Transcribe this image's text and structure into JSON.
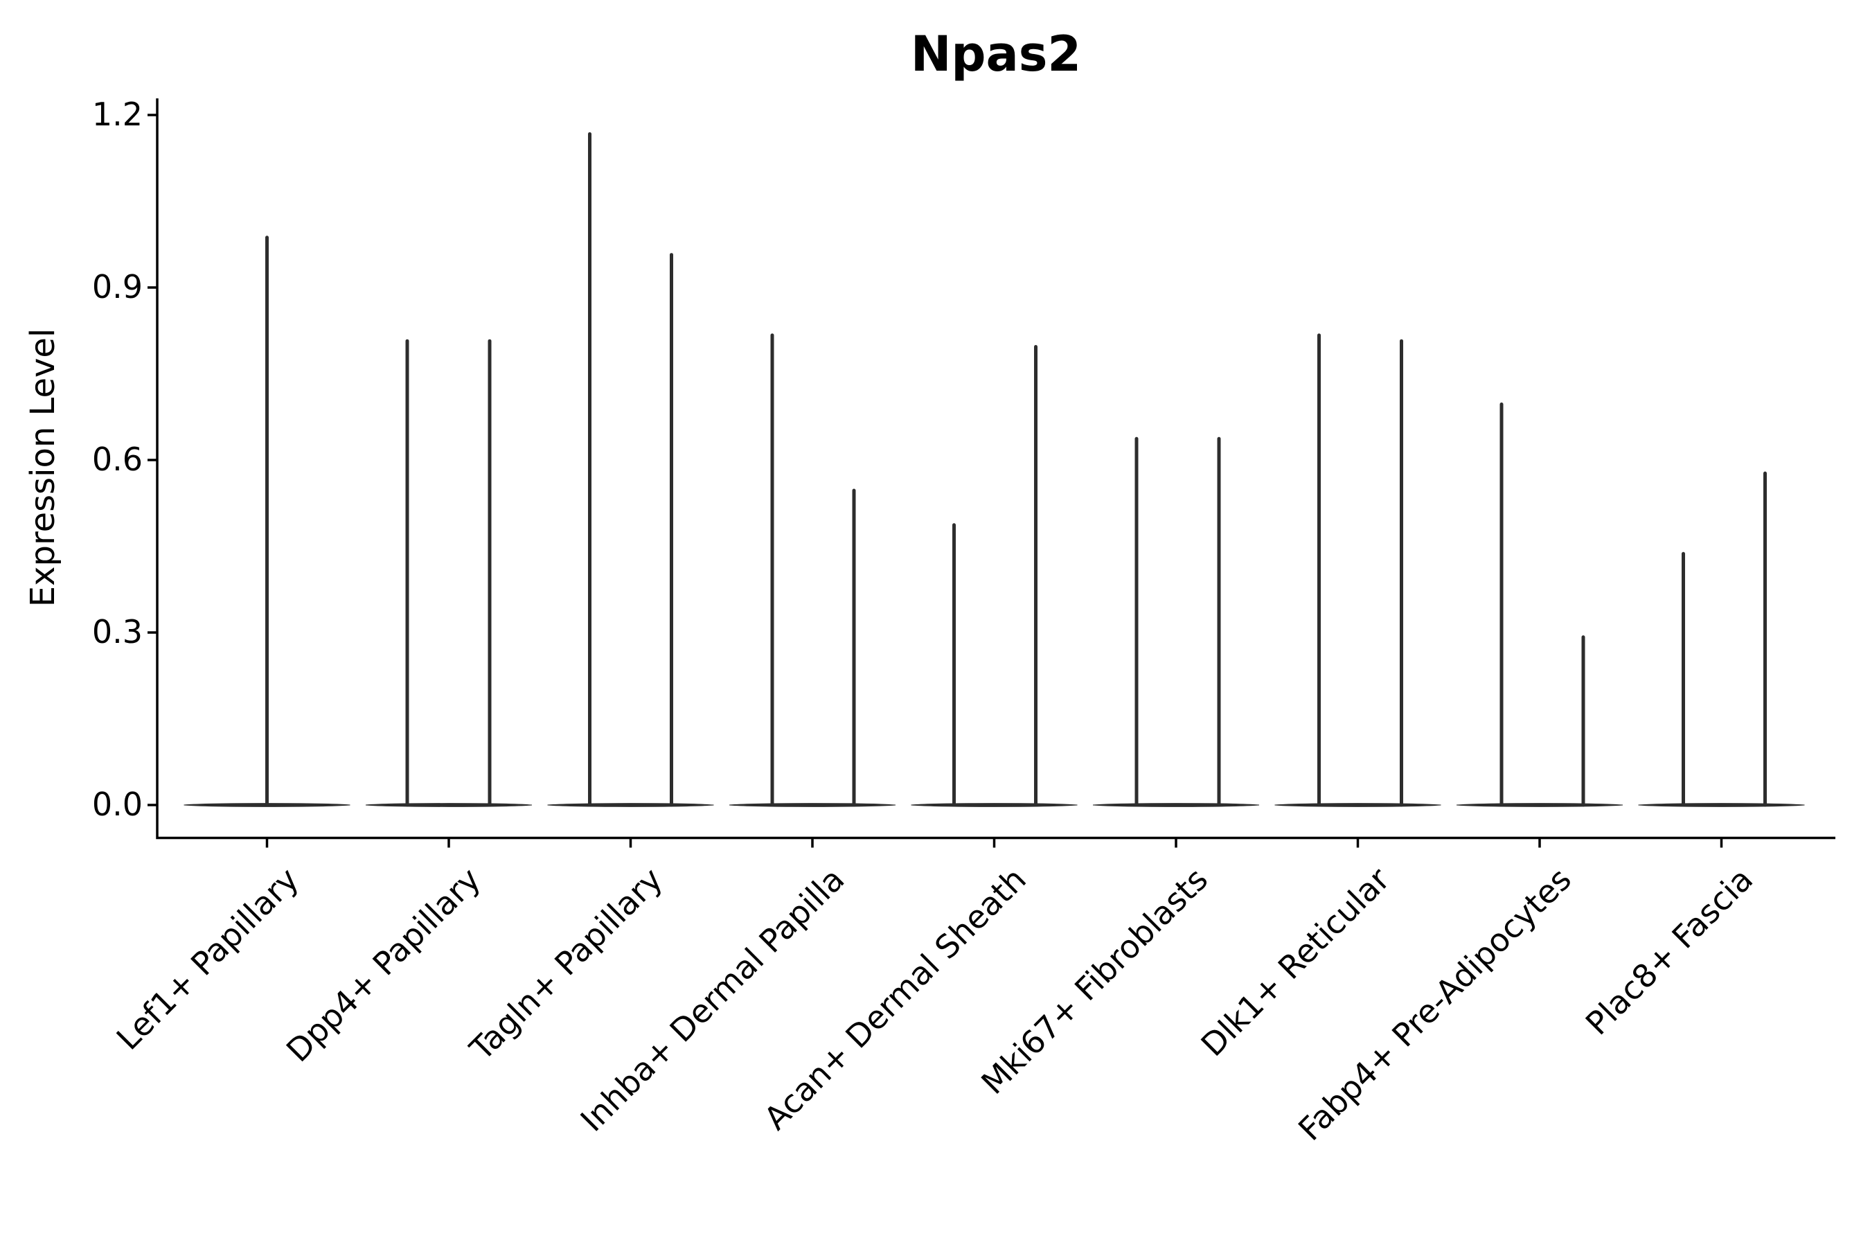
{
  "chart_data": {
    "type": "violin",
    "title": "Npas2",
    "xlabel": "",
    "ylabel": "Expression Level",
    "grid": false,
    "legend": null,
    "background_color": "#ffffff",
    "violin_line_color": "#2d2d2d",
    "axis_color": "#000000",
    "y_tick_labels": [
      "0.0",
      "0.3",
      "0.6",
      "0.9",
      "1.2"
    ],
    "y_tick_values": [
      0.0,
      0.3,
      0.6,
      0.9,
      1.2
    ],
    "ylim": [
      -0.06,
      1.23
    ],
    "style_note": "each violin is collapsed to a flat horizontal line at expression 0 with thin vertical density spikes at jittered offsets",
    "categories": [
      "Lef1+ Papillary",
      "Dpp4+ Papillary",
      "Tagln+ Papillary",
      "Inhba+ Dermal Papilla",
      "Acan+ Dermal Sheath",
      "Mki67+ Fibroblasts",
      "Dlk1+ Reticular",
      "Fabp4+ Pre-Adipocytes",
      "Plac8+ Fascia"
    ],
    "series": [
      {
        "category": "Lef1+ Papillary",
        "baseline_value": 0,
        "spikes": [
          {
            "dx": 0,
            "value": 0.99
          }
        ]
      },
      {
        "category": "Dpp4+ Papillary",
        "baseline_value": 0,
        "spikes": [
          {
            "dx": -60,
            "value": 0.81
          },
          {
            "dx": 59,
            "value": 0.81
          }
        ]
      },
      {
        "category": "Tagln+ Papillary",
        "baseline_value": 0,
        "spikes": [
          {
            "dx": -59,
            "value": 1.17
          },
          {
            "dx": 59,
            "value": 0.96
          }
        ]
      },
      {
        "category": "Inhba+ Dermal Papilla",
        "baseline_value": 0,
        "spikes": [
          {
            "dx": -58,
            "value": 0.82
          },
          {
            "dx": 60,
            "value": 0.55
          }
        ]
      },
      {
        "category": "Acan+ Dermal Sheath",
        "baseline_value": 0,
        "spikes": [
          {
            "dx": -58,
            "value": 0.49
          },
          {
            "dx": 60,
            "value": 0.8
          }
        ]
      },
      {
        "category": "Mki67+ Fibroblasts",
        "baseline_value": 0,
        "spikes": [
          {
            "dx": -57,
            "value": 0.64
          },
          {
            "dx": 62,
            "value": 0.64
          }
        ]
      },
      {
        "category": "Dlk1+ Reticular",
        "baseline_value": 0,
        "spikes": [
          {
            "dx": -56,
            "value": 0.82
          },
          {
            "dx": 63,
            "value": 0.81
          }
        ]
      },
      {
        "category": "Fabp4+ Pre-Adipocytes",
        "baseline_value": 0,
        "spikes": [
          {
            "dx": -55,
            "value": 0.7
          },
          {
            "dx": 63,
            "value": 0.295
          }
        ]
      },
      {
        "category": "Plac8+ Fascia",
        "baseline_value": 0,
        "spikes": [
          {
            "dx": -55,
            "value": 0.44
          },
          {
            "dx": 63,
            "value": 0.58
          }
        ]
      }
    ]
  }
}
